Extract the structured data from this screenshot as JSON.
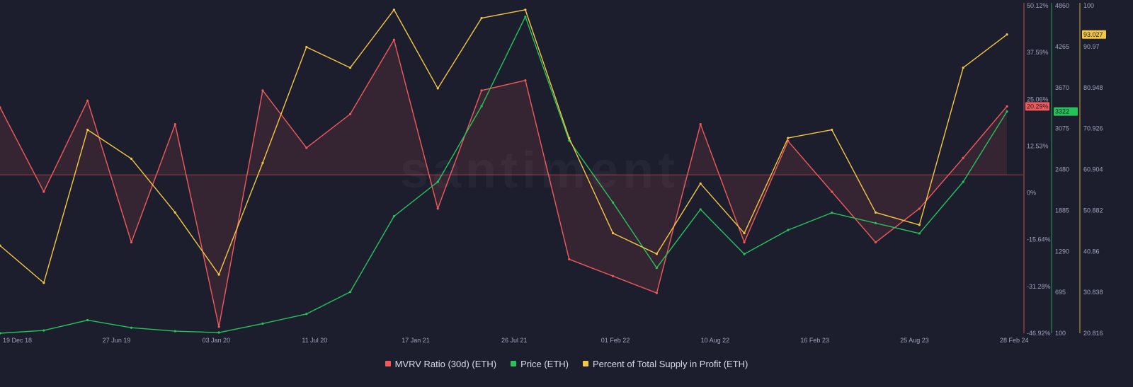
{
  "watermark": "santiment.",
  "legend": [
    {
      "label": "MVRV Ratio (30d) (ETH)",
      "color": "#ef5a5a"
    },
    {
      "label": "Price (ETH)",
      "color": "#26c35b"
    },
    {
      "label": "Percent of Total Supply in Profit (ETH)",
      "color": "#f2c744"
    }
  ],
  "colors": {
    "background": "#1c1e2e",
    "mvrv": "#ef5a5a",
    "price": "#26c35b",
    "supply": "#f2c744",
    "axis_text": "#9da3b8",
    "zero_line": "#c24a4a"
  },
  "chart_data": {
    "type": "line",
    "x_tick_labels": [
      "19 Dec 18",
      "27 Jun 19",
      "03 Jan 20",
      "11 Jul 20",
      "17 Jan 21",
      "26 Jul 21",
      "01 Feb 22",
      "10 Aug 22",
      "16 Feb 23",
      "25 Aug 23",
      "28 Feb 24"
    ],
    "x": [
      "2018-12",
      "2019-03",
      "2019-06",
      "2019-09",
      "2019-12",
      "2020-03",
      "2020-06",
      "2020-09",
      "2020-12",
      "2021-03",
      "2021-06",
      "2021-09",
      "2021-11",
      "2022-02",
      "2022-05",
      "2022-06",
      "2022-08",
      "2022-11",
      "2023-02",
      "2023-05",
      "2023-08",
      "2023-10",
      "2023-12",
      "2024-02"
    ],
    "axes": {
      "mvrv": {
        "ticks": [
          "50.12%",
          "37.59%",
          "25.06%",
          "12.53%",
          "0%",
          "-15.64%",
          "-31.28%",
          "-46.92%"
        ],
        "range": [
          -46.92,
          50.12
        ],
        "unit": "%"
      },
      "price": {
        "ticks": [
          "4860",
          "4265",
          "3670",
          "3075",
          "2480",
          "1885",
          "1290",
          "695",
          "100"
        ],
        "range": [
          100,
          4860
        ]
      },
      "supply": {
        "ticks": [
          "100",
          "90.97",
          "80.948",
          "70.926",
          "60.904",
          "50.882",
          "40.86",
          "30.838",
          "20.816"
        ],
        "range": [
          20.816,
          100
        ]
      }
    },
    "series": [
      {
        "name": "MVRV Ratio (30d) (ETH)",
        "axis": "mvrv",
        "values": [
          20,
          -5,
          22,
          -20,
          15,
          -45,
          25,
          8,
          18,
          40,
          -10,
          25,
          28,
          -25,
          -30,
          -35,
          15,
          -20,
          10,
          -5,
          -20,
          -10,
          5,
          20.29
        ],
        "last_label": "20.29%"
      },
      {
        "name": "Price (ETH)",
        "axis": "price",
        "values": [
          100,
          140,
          290,
          180,
          130,
          110,
          240,
          380,
          700,
          1800,
          2300,
          3400,
          4700,
          2900,
          2000,
          1050,
          1900,
          1250,
          1600,
          1850,
          1700,
          1550,
          2300,
          3322
        ],
        "last_label": "3322"
      },
      {
        "name": "Percent of Total Supply in Profit (ETH)",
        "axis": "supply",
        "values": [
          42,
          33,
          70,
          63,
          50,
          35,
          62,
          90,
          85,
          99,
          80,
          97,
          99,
          68,
          45,
          40,
          57,
          45,
          68,
          70,
          50,
          47,
          85,
          93.027
        ],
        "last_label": "93.027"
      }
    ]
  }
}
